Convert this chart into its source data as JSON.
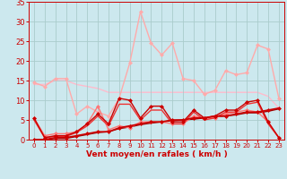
{
  "background_color": "#cce8ee",
  "grid_color": "#aacccc",
  "xlabel": "Vent moyen/en rafales ( km/h )",
  "xlabel_color": "#cc0000",
  "tick_color": "#cc0000",
  "xlim": [
    -0.5,
    23.5
  ],
  "ylim": [
    0,
    35
  ],
  "yticks": [
    0,
    5,
    10,
    15,
    20,
    25,
    30,
    35
  ],
  "xticks": [
    0,
    1,
    2,
    3,
    4,
    5,
    6,
    7,
    8,
    9,
    10,
    11,
    12,
    13,
    14,
    15,
    16,
    17,
    18,
    19,
    20,
    21,
    22,
    23
  ],
  "lines": [
    {
      "x": [
        0,
        1,
        2,
        3,
        4,
        5,
        6,
        7,
        8,
        9,
        10,
        11,
        12,
        13,
        14,
        15,
        16,
        17,
        18,
        19,
        20,
        21,
        22,
        23
      ],
      "y": [
        5.5,
        0.5,
        1,
        1,
        2,
        4,
        6.5,
        4,
        10.5,
        10,
        5.5,
        8.5,
        8.5,
        4.5,
        4.5,
        7.5,
        5.5,
        6,
        7.5,
        7.5,
        9.5,
        10,
        4.5,
        0.5
      ],
      "color": "#cc0000",
      "linewidth": 1.0,
      "marker": "D",
      "markersize": 2.5,
      "zorder": 5
    },
    {
      "x": [
        0,
        1,
        2,
        3,
        4,
        5,
        6,
        7,
        8,
        9,
        10,
        11,
        12,
        13,
        14,
        15,
        16,
        17,
        18,
        19,
        20,
        21,
        22,
        23
      ],
      "y": [
        5,
        0.5,
        0.8,
        0.8,
        1.8,
        3.5,
        6,
        3.5,
        9,
        9,
        5,
        7.5,
        7.5,
        4,
        4,
        7,
        5,
        5.5,
        7,
        7,
        9,
        9.5,
        4,
        0.5
      ],
      "color": "#ee3333",
      "linewidth": 1.0,
      "marker": null,
      "markersize": 0,
      "zorder": 4
    },
    {
      "x": [
        0,
        1,
        2,
        3,
        4,
        5,
        6,
        7,
        8,
        9,
        10,
        11,
        12,
        13,
        14,
        15,
        16,
        17,
        18,
        19,
        20,
        21,
        22,
        23
      ],
      "y": [
        0,
        0,
        0.5,
        0.5,
        1,
        1.5,
        2,
        2,
        3,
        3.5,
        4,
        4.5,
        4.5,
        5,
        5,
        5.5,
        5.5,
        6,
        6,
        6.5,
        7,
        7,
        7.5,
        8
      ],
      "color": "#cc0000",
      "linewidth": 1.2,
      "marker": "D",
      "markersize": 2.5,
      "zorder": 6
    },
    {
      "x": [
        0,
        1,
        2,
        3,
        4,
        5,
        6,
        7,
        8,
        9,
        10,
        11,
        12,
        13,
        14,
        15,
        16,
        17,
        18,
        19,
        20,
        21,
        22,
        23
      ],
      "y": [
        0,
        0,
        0.3,
        0.3,
        0.8,
        1.3,
        1.8,
        2,
        2.8,
        3.2,
        3.8,
        4.2,
        4.5,
        4.8,
        5,
        5.2,
        5.5,
        5.8,
        6,
        6.3,
        6.8,
        6.8,
        7.2,
        7.8
      ],
      "color": "#990000",
      "linewidth": 1.0,
      "marker": null,
      "markersize": 0,
      "zorder": 3
    },
    {
      "x": [
        0,
        1,
        2,
        3,
        4,
        5,
        6,
        7,
        8,
        9,
        10,
        11,
        12,
        13,
        14,
        15,
        16,
        17,
        18,
        19,
        20,
        21,
        22,
        23
      ],
      "y": [
        14.5,
        13.5,
        15.5,
        15.5,
        6.5,
        8.5,
        7,
        6,
        10.5,
        19.5,
        32.5,
        24.5,
        21.5,
        24.5,
        15.5,
        15,
        11.5,
        12.5,
        17.5,
        16.5,
        17,
        24,
        23,
        10.5
      ],
      "color": "#ffaaaa",
      "linewidth": 1.0,
      "marker": "D",
      "markersize": 2.5,
      "zorder": 2
    },
    {
      "x": [
        0,
        1,
        2,
        3,
        4,
        5,
        6,
        7,
        8,
        9,
        10,
        11,
        12,
        13,
        14,
        15,
        16,
        17,
        18,
        19,
        20,
        21,
        22,
        23
      ],
      "y": [
        14,
        14,
        15,
        15,
        14,
        13.5,
        13,
        12,
        12,
        12,
        12,
        12,
        12,
        12,
        12,
        12,
        12,
        12,
        12,
        12,
        12,
        12,
        11,
        8
      ],
      "color": "#ffbbcc",
      "linewidth": 1.0,
      "marker": null,
      "markersize": 0,
      "zorder": 1
    },
    {
      "x": [
        0,
        1,
        2,
        3,
        4,
        5,
        6,
        7,
        8,
        9,
        10,
        11,
        12,
        13,
        14,
        15,
        16,
        17,
        18,
        19,
        20,
        21,
        22,
        23
      ],
      "y": [
        5.5,
        1,
        1.5,
        1.5,
        2,
        4,
        8.5,
        2.5,
        3.5,
        3,
        4.5,
        4.5,
        4.5,
        4,
        4,
        6,
        5.5,
        5.5,
        6.5,
        7,
        7.5,
        7,
        4.5,
        0.5
      ],
      "color": "#ff7777",
      "linewidth": 1.0,
      "marker": "D",
      "markersize": 2.5,
      "zorder": 3
    }
  ]
}
